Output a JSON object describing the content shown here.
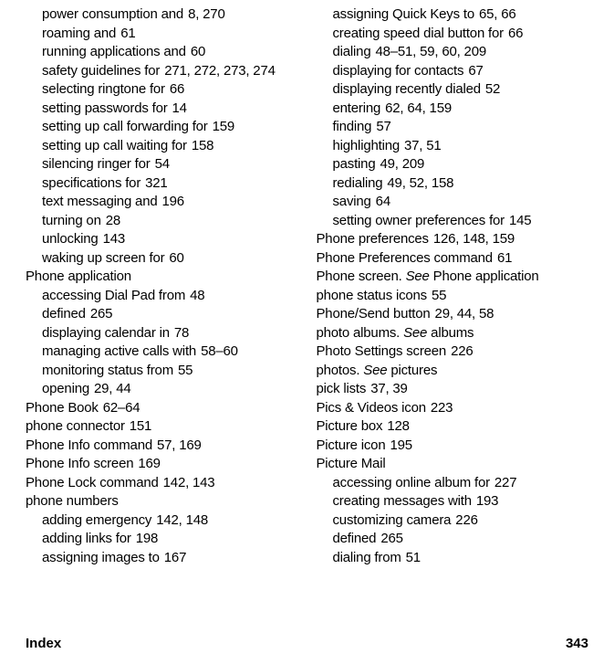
{
  "footer": {
    "label": "Index",
    "page": "343"
  },
  "left": [
    {
      "sub": true,
      "text": "power consumption and",
      "pages": "8, 270"
    },
    {
      "sub": true,
      "text": "roaming and",
      "pages": "61"
    },
    {
      "sub": true,
      "text": "running applications and",
      "pages": "60"
    },
    {
      "sub": true,
      "text": "safety guidelines for",
      "pages": "271, 272, 273, 274"
    },
    {
      "sub": true,
      "text": "selecting ringtone for",
      "pages": "66"
    },
    {
      "sub": true,
      "text": "setting passwords for",
      "pages": "14"
    },
    {
      "sub": true,
      "text": "setting up call forwarding for",
      "pages": "159"
    },
    {
      "sub": true,
      "text": "setting up call waiting for",
      "pages": "158"
    },
    {
      "sub": true,
      "text": "silencing ringer for",
      "pages": "54"
    },
    {
      "sub": true,
      "text": "specifications for",
      "pages": "321"
    },
    {
      "sub": true,
      "text": "text messaging and",
      "pages": "196"
    },
    {
      "sub": true,
      "text": "turning on",
      "pages": "28"
    },
    {
      "sub": true,
      "text": "unlocking",
      "pages": "143"
    },
    {
      "sub": true,
      "text": "waking up screen for",
      "pages": "60"
    },
    {
      "sub": false,
      "text": "Phone application",
      "pages": ""
    },
    {
      "sub": true,
      "text": "accessing Dial Pad from",
      "pages": "48"
    },
    {
      "sub": true,
      "text": "defined",
      "pages": "265"
    },
    {
      "sub": true,
      "text": "displaying calendar in",
      "pages": "78"
    },
    {
      "sub": true,
      "text": "managing active calls with",
      "pages": "58–60"
    },
    {
      "sub": true,
      "text": "monitoring status from",
      "pages": "55"
    },
    {
      "sub": true,
      "text": "opening",
      "pages": "29, 44"
    },
    {
      "sub": false,
      "text": "Phone Book",
      "pages": "62–64"
    },
    {
      "sub": false,
      "text": "phone connector",
      "pages": "151"
    },
    {
      "sub": false,
      "text": "Phone Info command",
      "pages": "57, 169"
    },
    {
      "sub": false,
      "text": "Phone Info screen",
      "pages": "169"
    },
    {
      "sub": false,
      "text": "Phone Lock command",
      "pages": "142, 143"
    },
    {
      "sub": false,
      "text": "phone numbers",
      "pages": ""
    },
    {
      "sub": true,
      "text": "adding emergency",
      "pages": "142, 148"
    },
    {
      "sub": true,
      "text": "adding links for",
      "pages": "198"
    },
    {
      "sub": true,
      "text": "assigning images to",
      "pages": "167"
    }
  ],
  "right": [
    {
      "sub": true,
      "text": "assigning Quick Keys to",
      "pages": "65, 66"
    },
    {
      "sub": true,
      "text": "creating speed dial button for",
      "pages": "66"
    },
    {
      "sub": true,
      "text": "dialing",
      "pages": "48–51, 59, 60, 209"
    },
    {
      "sub": true,
      "text": "displaying for contacts",
      "pages": "67"
    },
    {
      "sub": true,
      "text": "displaying recently dialed",
      "pages": "52"
    },
    {
      "sub": true,
      "text": "entering",
      "pages": "62, 64, 159"
    },
    {
      "sub": true,
      "text": "finding",
      "pages": "57"
    },
    {
      "sub": true,
      "text": "highlighting",
      "pages": "37, 51"
    },
    {
      "sub": true,
      "text": "pasting",
      "pages": "49, 209"
    },
    {
      "sub": true,
      "text": "redialing",
      "pages": "49, 52, 158"
    },
    {
      "sub": true,
      "text": "saving",
      "pages": "64"
    },
    {
      "sub": true,
      "text": "setting owner preferences for",
      "pages": "145"
    },
    {
      "sub": false,
      "text": "Phone preferences",
      "pages": "126, 148, 159"
    },
    {
      "sub": false,
      "text": "Phone Preferences command",
      "pages": "61"
    },
    {
      "sub": false,
      "see": true,
      "text": "Phone screen.",
      "seeWord": "See",
      "tail": "Phone application",
      "pages": ""
    },
    {
      "sub": false,
      "text": "phone status icons",
      "pages": "55"
    },
    {
      "sub": false,
      "text": "Phone/Send button",
      "pages": "29, 44, 58"
    },
    {
      "sub": false,
      "see": true,
      "text": "photo albums.",
      "seeWord": "See",
      "tail": "albums",
      "pages": ""
    },
    {
      "sub": false,
      "text": "Photo Settings screen",
      "pages": "226"
    },
    {
      "sub": false,
      "see": true,
      "text": "photos.",
      "seeWord": "See",
      "tail": "pictures",
      "pages": ""
    },
    {
      "sub": false,
      "text": "pick lists",
      "pages": "37, 39"
    },
    {
      "sub": false,
      "text": "Pics & Videos icon",
      "pages": "223"
    },
    {
      "sub": false,
      "text": "Picture box",
      "pages": "128"
    },
    {
      "sub": false,
      "text": "Picture icon",
      "pages": "195"
    },
    {
      "sub": false,
      "text": "Picture Mail",
      "pages": ""
    },
    {
      "sub": true,
      "text": "accessing online album for",
      "pages": "227"
    },
    {
      "sub": true,
      "text": "creating messages with",
      "pages": "193"
    },
    {
      "sub": true,
      "text": "customizing camera",
      "pages": "226"
    },
    {
      "sub": true,
      "text": "defined",
      "pages": "265"
    },
    {
      "sub": true,
      "text": "dialing from",
      "pages": "51"
    }
  ]
}
